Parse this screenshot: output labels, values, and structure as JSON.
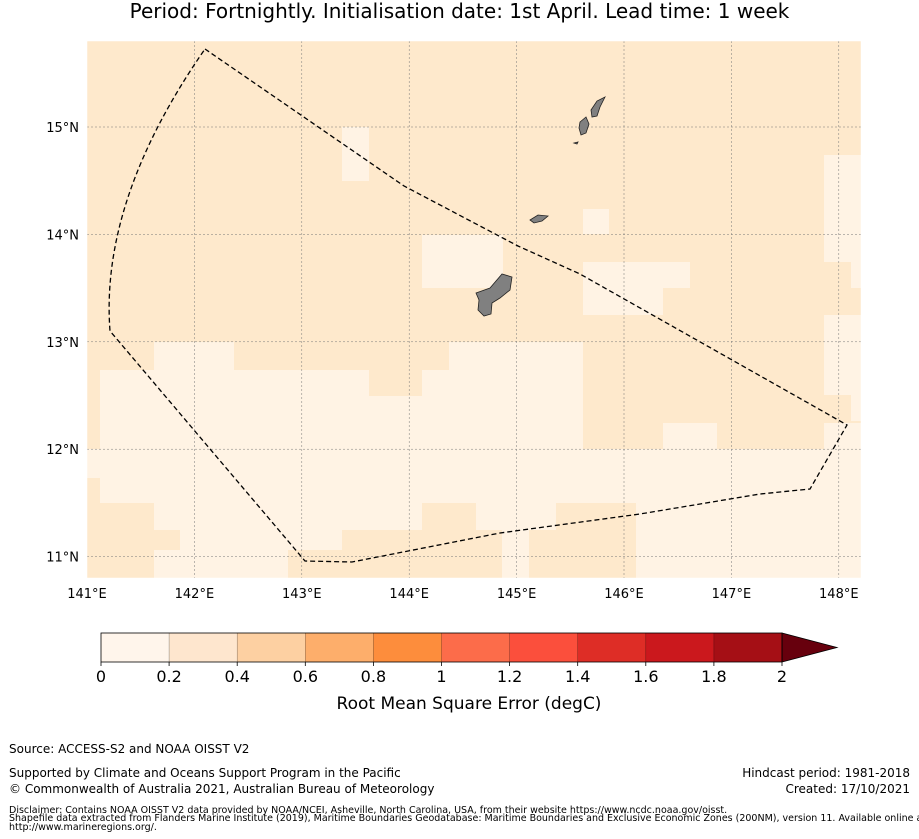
{
  "title": "Period: Fortnightly. Initialisation date: 1st April. Lead time: 1 week",
  "map": {
    "lon_ticks": [
      "141°E",
      "142°E",
      "143°E",
      "144°E",
      "145°E",
      "146°E",
      "147°E",
      "148°E"
    ],
    "lat_ticks": [
      "15°N",
      "14°N",
      "13°N",
      "12°N",
      "11°N"
    ],
    "extent": {
      "lon": [
        141.0,
        148.2
      ],
      "lat": [
        10.8,
        15.8
      ]
    },
    "land_color": "#808080",
    "boundary_style": "dashed"
  },
  "colorbar": {
    "label": "Root Mean Square Error (degC)",
    "ticks": [
      "0",
      "0.2",
      "0.4",
      "0.6",
      "0.8",
      "1",
      "1.2",
      "1.4",
      "1.6",
      "1.8",
      "2"
    ],
    "colors": [
      "#fff5eb",
      "#fee6ce",
      "#fdd0a2",
      "#fdae6b",
      "#fd8d3c",
      "#fc6c4a",
      "#fb4f3c",
      "#de2d26",
      "#cb181d",
      "#a50f15"
    ],
    "extend_color": "#67000d"
  },
  "footer": {
    "source": "Source: ACCESS-S2 and NOAA OISST V2",
    "supported": "Supported by Climate and Oceans Support Program in the Pacific",
    "copyright": "© Commonwealth of Australia 2021, Australian Bureau of Meteorology",
    "hindcast": "Hindcast period: 1981-2018",
    "created": "Created: 17/10/2021",
    "disclaimer1": "Disclaimer: Contains NOAA OISST V2 data provided by NOAA/NCEI, Asheville, North Carolina, USA, from their website https://www.ncdc.noaa.gov/oisst.",
    "disclaimer2": "Shapefile data extracted from Flanders Marine Institute (2019), Maritime Boundaries Geodatabase: Maritime Boundaries and Exclusive Economic Zones (200NM), version 11. Available online at",
    "disclaimer3": "http://www.marineregions.org/."
  }
}
